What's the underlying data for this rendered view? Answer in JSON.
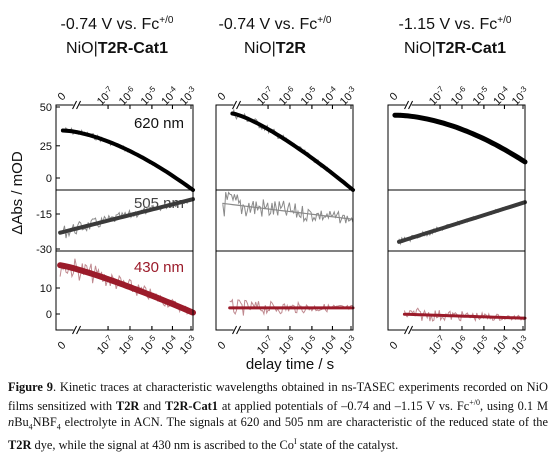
{
  "figure": {
    "panels": [
      {
        "title_line1": "-0.74 V vs. Fc",
        "title_sup": "+/0",
        "title_pre": "NiO|",
        "title_bold": "T2R-Cat1"
      },
      {
        "title_line1": "-0.74 V vs. Fc",
        "title_sup": "+/0",
        "title_pre": "NiO|",
        "title_bold": "T2R"
      },
      {
        "title_line1": "-1.15 V vs. Fc",
        "title_sup": "+/0",
        "title_pre": "NiO|",
        "title_bold": "T2R-Cat1"
      }
    ],
    "y_axis_label": "ΔAbs / mOD",
    "x_axis_label": "delay time / s",
    "y_ticks_620": [
      "50",
      "25",
      "0"
    ],
    "y_ticks_505": [
      "-15",
      "-30"
    ],
    "y_ticks_430": [
      "10",
      "0"
    ],
    "x_tick_top": "0",
    "x_tick_bottom": "0",
    "x_tick_base": "10",
    "x_tick_exponents": [
      "-7",
      "-6",
      "-5",
      "-4",
      "-3"
    ],
    "wavelength_labels": {
      "nm620": "620 nm",
      "nm505": "505 nm",
      "nm430": "430 nm"
    },
    "colors": {
      "nm620": "#000000",
      "nm505": "#3a3a3a",
      "nm430": "#9b1b2a",
      "noise_gray": "#8a8a8a",
      "noise_red": "#c08a90"
    }
  },
  "caption": {
    "label": "Figure 9",
    "part1": ". Kinetic traces at characteristic wavelengths obtained in ns-TASEC experiments recorded on NiO films sensitized with ",
    "bold1": "T2R",
    "part2": " and ",
    "bold2": "T2R-Cat1",
    "part3": " at applied potentials of –0.74 and –1.15 V vs. Fc",
    "sup1": "+/0",
    "part4": ", using 0.1 M ",
    "italic1": "n",
    "part5": "Bu",
    "sub1": "4",
    "part6": "NBF",
    "sub2": "4",
    "part7": " electrolyte in ACN. The signals at 620 and 505 nm are characteristic of the reduced state of the ",
    "bold3": "T2R",
    "part8": " dye, while the signal at 430 nm is ascribed to the Co",
    "sup2": "I",
    "part9": " state of the catalyst."
  }
}
